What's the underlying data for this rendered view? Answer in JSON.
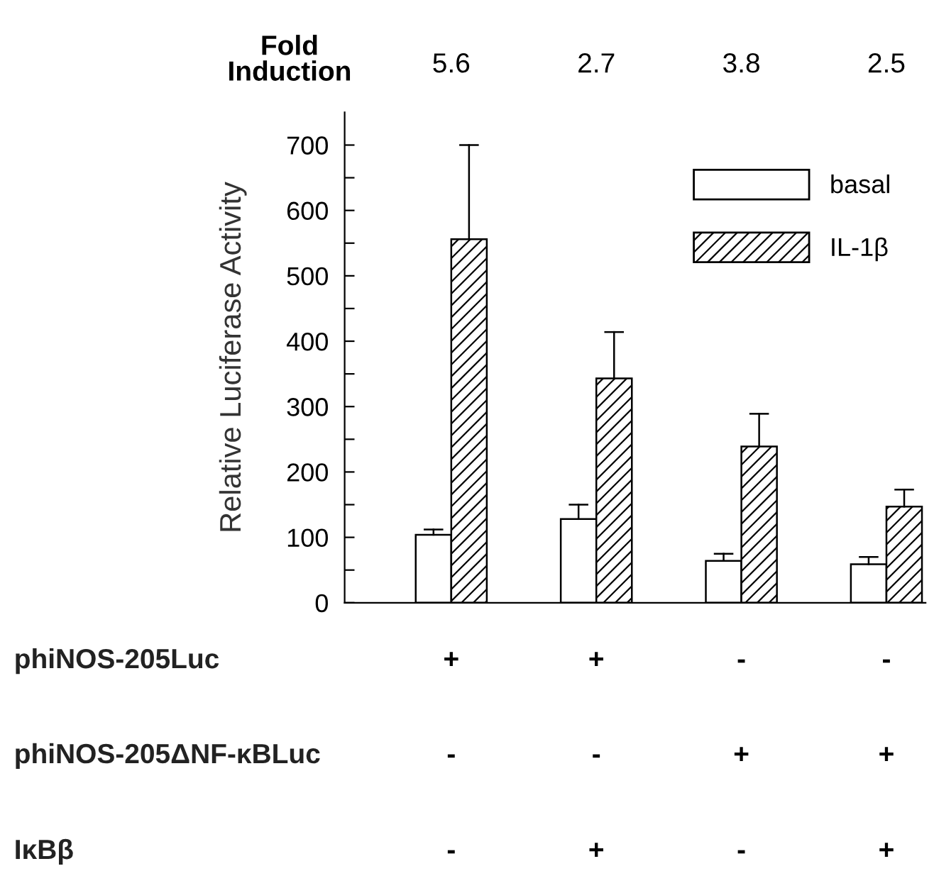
{
  "chart_data": {
    "type": "bar",
    "ylabel": "Relative Luciferase Activity",
    "categories": [
      null,
      null,
      null,
      null
    ],
    "series": [
      {
        "name": "basal",
        "color": "#ffffff",
        "values": [
          104,
          128,
          64,
          59
        ],
        "errors": [
          [
            104,
            112
          ],
          [
            128,
            150
          ],
          [
            64,
            75
          ],
          [
            59,
            70
          ]
        ]
      },
      {
        "name": "IL-1β",
        "color": "#000000",
        "values": [
          556,
          343,
          239,
          147
        ],
        "errors": [
          [
            556,
            700
          ],
          [
            343,
            414
          ],
          [
            239,
            289
          ],
          [
            147,
            173
          ]
        ]
      }
    ],
    "ylim": [
      0,
      750
    ],
    "yticks": [
      0,
      {
        "value": 50,
        "label": null
      },
      100,
      {
        "value": 150,
        "label": null
      },
      200,
      {
        "value": 250,
        "label": null
      },
      300,
      {
        "value": 350,
        "label": null
      },
      400,
      {
        "value": 450,
        "label": null
      },
      500,
      {
        "value": 550,
        "label": null
      },
      600,
      {
        "value": 650,
        "label": null
      },
      700
    ],
    "legend": "top right",
    "grid": false,
    "annotations": [
      "Fold\nInduction",
      "5.6",
      "2.7",
      "3.8",
      "2.5",
      "phiNOS-205Luc",
      "+",
      "+",
      "-",
      "-",
      "phiNOS-205ΔNF-κBLuc",
      "-",
      "-",
      "+",
      "+",
      "IκBβ",
      "-",
      "+",
      "-",
      "+"
    ]
  }
}
